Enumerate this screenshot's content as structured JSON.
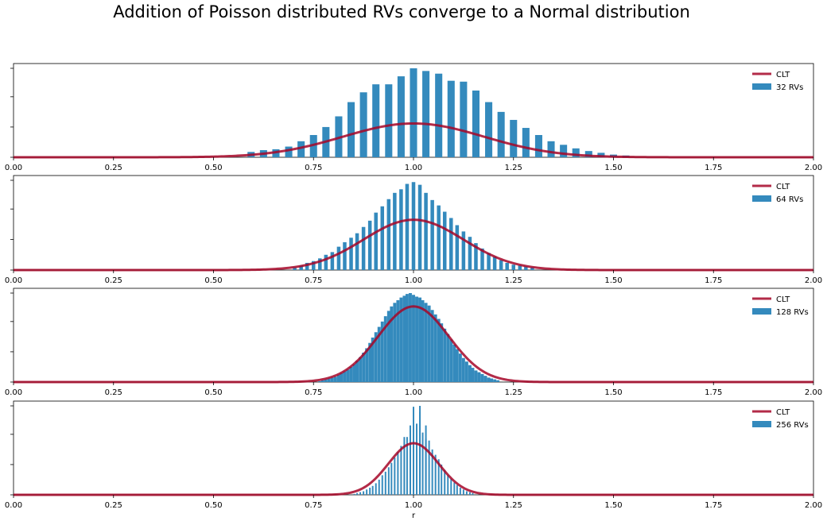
{
  "title": "Addition of Poisson distributed RVs converge to a Normal distribution",
  "colors": {
    "bars": "#348abd",
    "curve": "#a60628"
  },
  "chart_data": [
    {
      "type": "bar+line",
      "xlim": [
        0,
        2
      ],
      "xticks": [
        "0.00",
        "0.25",
        "0.50",
        "0.75",
        "1.00",
        "1.25",
        "1.50",
        "1.75",
        "2.00"
      ],
      "xlabel": "r",
      "legend": {
        "position": "top-right",
        "entries": [
          "CLT",
          "32 RVs"
        ]
      },
      "n": 32,
      "curve": {
        "name": "CLT",
        "mu": 1.0,
        "sigma": 0.177,
        "peak_frac": 0.38
      },
      "bins": [
        [
          0.594,
          0.06
        ],
        [
          0.625,
          0.08
        ],
        [
          0.656,
          0.09
        ],
        [
          0.688,
          0.12
        ],
        [
          0.719,
          0.18
        ],
        [
          0.75,
          0.25
        ],
        [
          0.781,
          0.34
        ],
        [
          0.813,
          0.46
        ],
        [
          0.844,
          0.62
        ],
        [
          0.875,
          0.73
        ],
        [
          0.906,
          0.82
        ],
        [
          0.938,
          0.82
        ],
        [
          0.969,
          0.91
        ],
        [
          1.0,
          1.0
        ],
        [
          1.031,
          0.97
        ],
        [
          1.063,
          0.94
        ],
        [
          1.094,
          0.86
        ],
        [
          1.125,
          0.85
        ],
        [
          1.156,
          0.75
        ],
        [
          1.188,
          0.62
        ],
        [
          1.219,
          0.51
        ],
        [
          1.25,
          0.42
        ],
        [
          1.281,
          0.33
        ],
        [
          1.313,
          0.25
        ],
        [
          1.344,
          0.18
        ],
        [
          1.375,
          0.14
        ],
        [
          1.406,
          0.1
        ],
        [
          1.438,
          0.07
        ],
        [
          1.469,
          0.05
        ],
        [
          1.5,
          0.03
        ],
        [
          1.531,
          0.02
        ]
      ],
      "bar_width": 0.018
    },
    {
      "type": "bar+line",
      "xlim": [
        0,
        2
      ],
      "xticks": [
        "0.00",
        "0.25",
        "0.50",
        "0.75",
        "1.00",
        "1.25",
        "1.50",
        "1.75",
        "2.00"
      ],
      "xlabel": "r",
      "legend": {
        "position": "top-right",
        "entries": [
          "CLT",
          "64 RVs"
        ]
      },
      "n": 64,
      "curve": {
        "name": "CLT",
        "mu": 1.0,
        "sigma": 0.125,
        "peak_frac": 0.56
      },
      "bins": [
        [
          0.703,
          0.03
        ],
        [
          0.719,
          0.05
        ],
        [
          0.734,
          0.08
        ],
        [
          0.75,
          0.1
        ],
        [
          0.766,
          0.13
        ],
        [
          0.781,
          0.17
        ],
        [
          0.797,
          0.2
        ],
        [
          0.813,
          0.26
        ],
        [
          0.828,
          0.31
        ],
        [
          0.844,
          0.36
        ],
        [
          0.859,
          0.41
        ],
        [
          0.875,
          0.48
        ],
        [
          0.891,
          0.55
        ],
        [
          0.906,
          0.64
        ],
        [
          0.922,
          0.71
        ],
        [
          0.938,
          0.79
        ],
        [
          0.953,
          0.86
        ],
        [
          0.969,
          0.9
        ],
        [
          0.984,
          0.96
        ],
        [
          1.0,
          0.98
        ],
        [
          1.016,
          0.95
        ],
        [
          1.031,
          0.86
        ],
        [
          1.047,
          0.78
        ],
        [
          1.063,
          0.72
        ],
        [
          1.078,
          0.65
        ],
        [
          1.094,
          0.58
        ],
        [
          1.109,
          0.5
        ],
        [
          1.125,
          0.43
        ],
        [
          1.141,
          0.37
        ],
        [
          1.156,
          0.3
        ],
        [
          1.172,
          0.24
        ],
        [
          1.188,
          0.19
        ],
        [
          1.203,
          0.15
        ],
        [
          1.219,
          0.11
        ],
        [
          1.234,
          0.08
        ],
        [
          1.25,
          0.06
        ],
        [
          1.266,
          0.05
        ],
        [
          1.281,
          0.04
        ],
        [
          1.297,
          0.03
        ]
      ],
      "bar_width": 0.009
    },
    {
      "type": "bar+line",
      "xlim": [
        0,
        2
      ],
      "xticks": [
        "0.00",
        "0.25",
        "0.50",
        "0.75",
        "1.00",
        "1.25",
        "1.50",
        "1.75",
        "2.00"
      ],
      "xlabel": "r",
      "legend": {
        "position": "top-right",
        "entries": [
          "CLT",
          "128 RVs"
        ]
      },
      "n": 128,
      "curve": {
        "name": "CLT",
        "mu": 1.0,
        "sigma": 0.088,
        "peak_frac": 0.85
      },
      "bins": [
        [
          0.766,
          0.01
        ],
        [
          0.773,
          0.02
        ],
        [
          0.781,
          0.03
        ],
        [
          0.789,
          0.04
        ],
        [
          0.797,
          0.05
        ],
        [
          0.805,
          0.06
        ],
        [
          0.813,
          0.08
        ],
        [
          0.82,
          0.1
        ],
        [
          0.828,
          0.12
        ],
        [
          0.836,
          0.14
        ],
        [
          0.844,
          0.17
        ],
        [
          0.852,
          0.2
        ],
        [
          0.859,
          0.24
        ],
        [
          0.867,
          0.28
        ],
        [
          0.875,
          0.33
        ],
        [
          0.883,
          0.38
        ],
        [
          0.891,
          0.44
        ],
        [
          0.898,
          0.5
        ],
        [
          0.906,
          0.56
        ],
        [
          0.914,
          0.62
        ],
        [
          0.922,
          0.68
        ],
        [
          0.93,
          0.74
        ],
        [
          0.938,
          0.8
        ],
        [
          0.945,
          0.85
        ],
        [
          0.953,
          0.89
        ],
        [
          0.961,
          0.92
        ],
        [
          0.969,
          0.95
        ],
        [
          0.977,
          0.97
        ],
        [
          0.984,
          0.99
        ],
        [
          0.992,
          1.0
        ],
        [
          1.0,
          0.98
        ],
        [
          1.008,
          0.96
        ],
        [
          1.016,
          0.95
        ],
        [
          1.023,
          0.92
        ],
        [
          1.031,
          0.89
        ],
        [
          1.039,
          0.86
        ],
        [
          1.047,
          0.81
        ],
        [
          1.055,
          0.76
        ],
        [
          1.063,
          0.71
        ],
        [
          1.07,
          0.66
        ],
        [
          1.078,
          0.6
        ],
        [
          1.086,
          0.54
        ],
        [
          1.094,
          0.48
        ],
        [
          1.102,
          0.42
        ],
        [
          1.109,
          0.37
        ],
        [
          1.117,
          0.32
        ],
        [
          1.125,
          0.27
        ],
        [
          1.133,
          0.23
        ],
        [
          1.141,
          0.19
        ],
        [
          1.148,
          0.16
        ],
        [
          1.156,
          0.13
        ],
        [
          1.164,
          0.11
        ],
        [
          1.172,
          0.09
        ],
        [
          1.18,
          0.07
        ],
        [
          1.188,
          0.05
        ],
        [
          1.195,
          0.04
        ],
        [
          1.203,
          0.03
        ],
        [
          1.211,
          0.02
        ]
      ],
      "bar_width": 0.0078
    },
    {
      "type": "bar+line",
      "xlim": [
        0,
        2
      ],
      "xticks": [
        "0.00",
        "0.25",
        "0.50",
        "0.75",
        "1.00",
        "1.25",
        "1.50",
        "1.75",
        "2.00"
      ],
      "xlabel": "r",
      "legend": {
        "position": "top-right",
        "entries": [
          "CLT",
          "256 RVs"
        ]
      },
      "n": 256,
      "curve": {
        "name": "CLT",
        "mu": 1.0,
        "sigma": 0.0625,
        "peak_frac": 0.58
      },
      "bins": [
        [
          0.852,
          0.01
        ],
        [
          0.859,
          0.02
        ],
        [
          0.867,
          0.03
        ],
        [
          0.875,
          0.04
        ],
        [
          0.883,
          0.06
        ],
        [
          0.891,
          0.08
        ],
        [
          0.898,
          0.1
        ],
        [
          0.906,
          0.13
        ],
        [
          0.914,
          0.17
        ],
        [
          0.922,
          0.22
        ],
        [
          0.93,
          0.26
        ],
        [
          0.938,
          0.31
        ],
        [
          0.945,
          0.36
        ],
        [
          0.953,
          0.42
        ],
        [
          0.961,
          0.48
        ],
        [
          0.969,
          0.55
        ],
        [
          0.977,
          0.59
        ],
        [
          0.984,
          0.65
        ],
        [
          0.992,
          0.72
        ],
        [
          1.0,
          0.73
        ],
        [
          1.008,
          0.8
        ],
        [
          1.016,
          0.93
        ],
        [
          1.023,
          0.7
        ],
        [
          1.031,
          0.63
        ],
        [
          1.039,
          0.61
        ],
        [
          1.047,
          0.51
        ],
        [
          1.055,
          0.45
        ],
        [
          1.063,
          0.4
        ],
        [
          1.07,
          0.34
        ],
        [
          1.078,
          0.28
        ],
        [
          1.086,
          0.22
        ],
        [
          1.094,
          0.18
        ],
        [
          1.102,
          0.14
        ],
        [
          1.109,
          0.11
        ],
        [
          1.117,
          0.08
        ],
        [
          1.125,
          0.06
        ],
        [
          1.133,
          0.04
        ],
        [
          1.141,
          0.03
        ],
        [
          1.148,
          0.02
        ]
      ],
      "spikes": [
        [
          0.977,
          0.65
        ],
        [
          0.992,
          0.78
        ],
        [
          1.0,
          0.99
        ],
        [
          1.016,
          1.0
        ],
        [
          1.031,
          0.78
        ]
      ],
      "bar_width": 0.0039
    }
  ]
}
